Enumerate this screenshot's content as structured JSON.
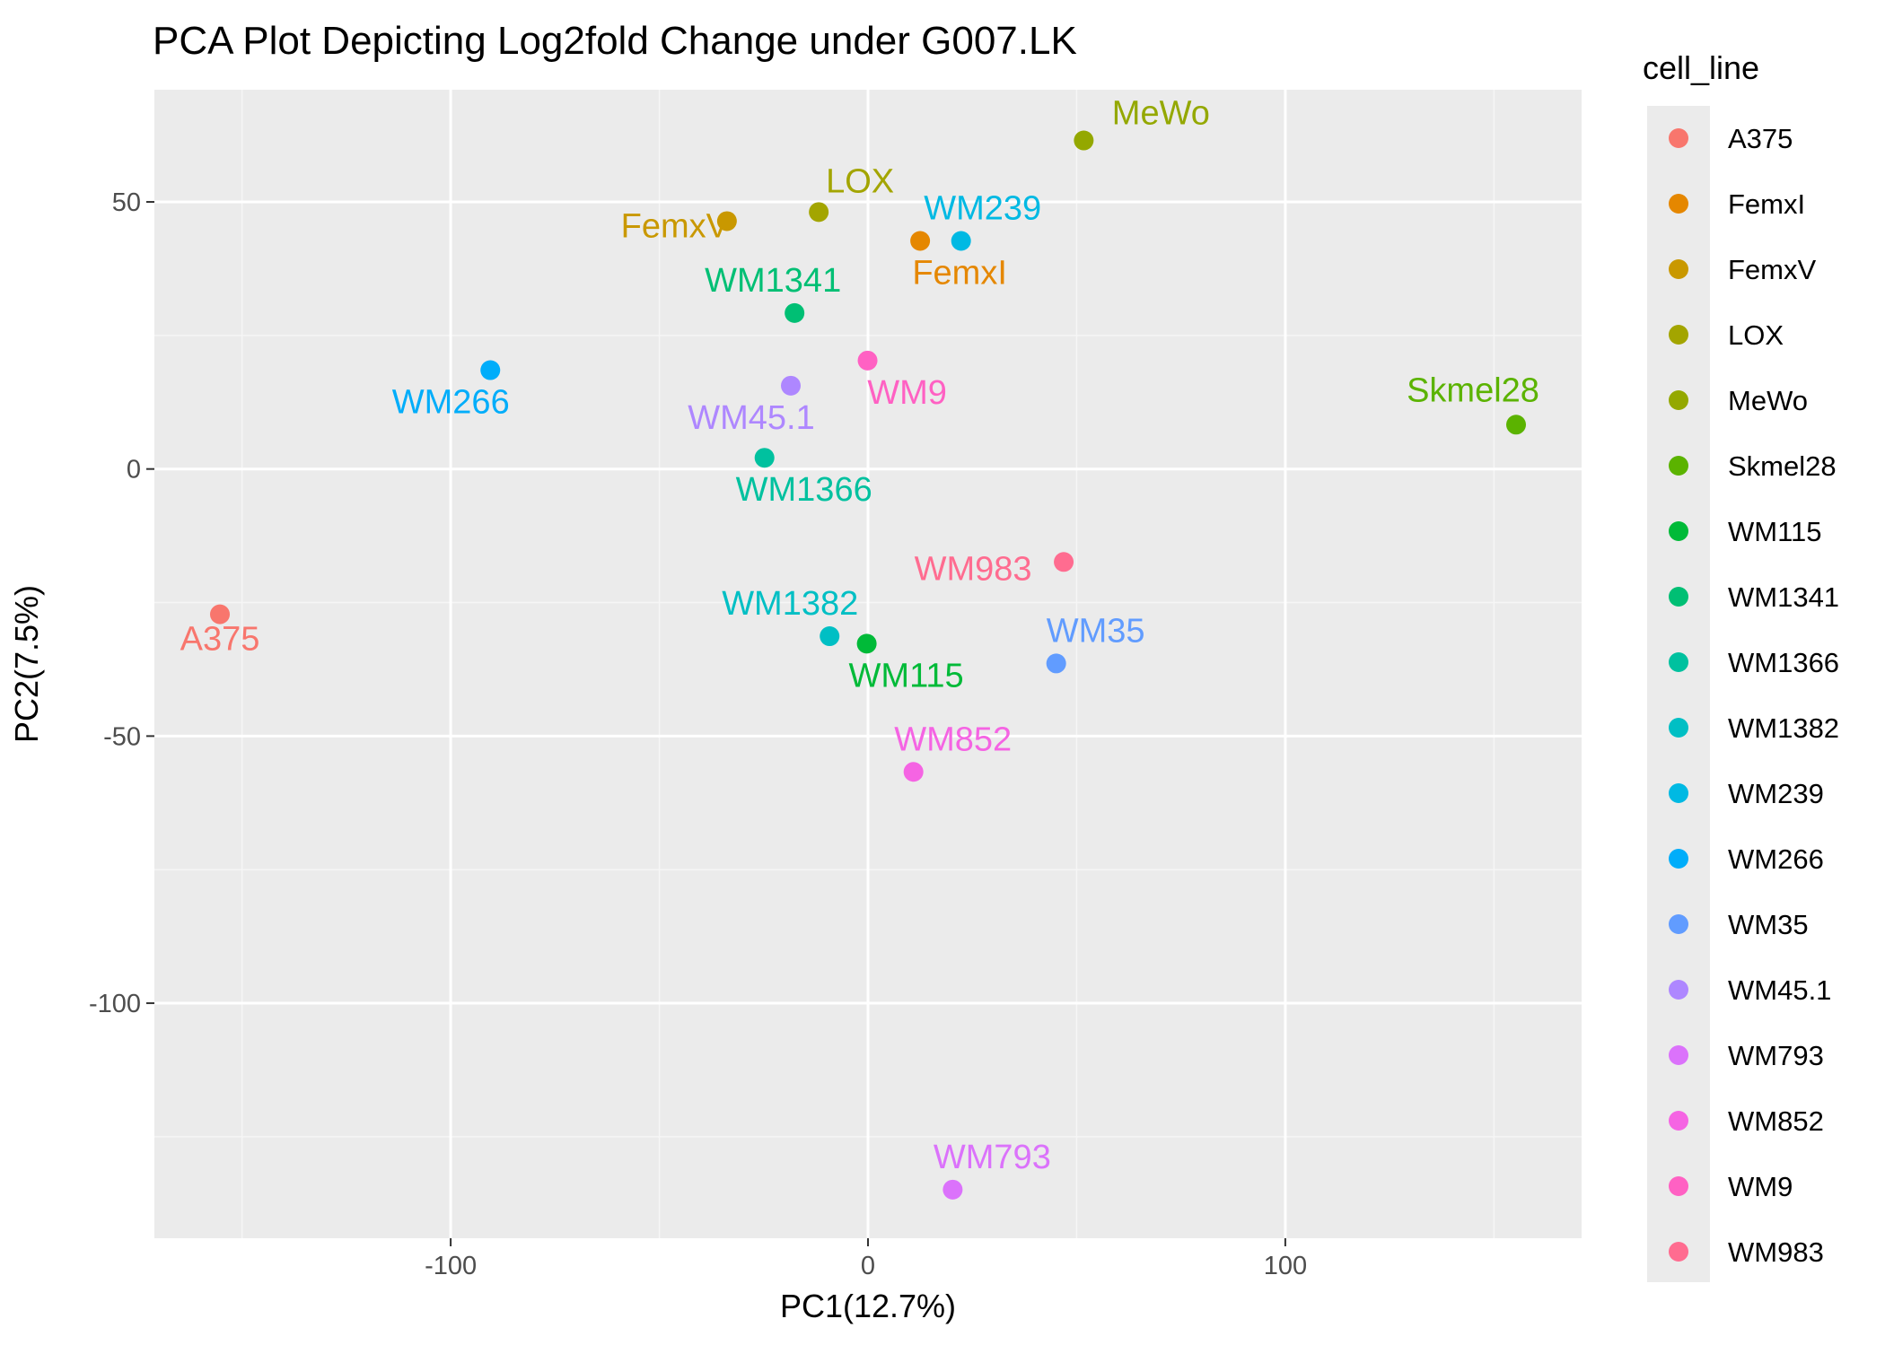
{
  "chart_data": {
    "type": "scatter",
    "title": "PCA Plot Depicting Log2fold Change under G007.LK",
    "xlabel": "PC1(12.7%)",
    "ylabel": "PC2(7.5%)",
    "xlim": [
      -171,
      171
    ],
    "ylim": [
      -144,
      71
    ],
    "xticks": [
      -100,
      0,
      100
    ],
    "xtick_labels": [
      "-100",
      "0",
      "100"
    ],
    "yticks": [
      -100,
      -50,
      0,
      50
    ],
    "ytick_labels": [
      "-100",
      "-50",
      "0",
      "50"
    ],
    "grid": true,
    "legend": {
      "title": "cell_line",
      "position": "right"
    },
    "series": [
      {
        "name": "A375",
        "color": "#F8766D",
        "x": -155.3,
        "y": -27.2,
        "label": "A375"
      },
      {
        "name": "FemxI",
        "color": "#E58700",
        "x": 12.5,
        "y": 42.7,
        "label": "FemxI"
      },
      {
        "name": "FemxV",
        "color": "#C99800",
        "x": -33.8,
        "y": 46.4,
        "label": "FemxV"
      },
      {
        "name": "LOX",
        "color": "#A3A500",
        "x": -11.8,
        "y": 48.1,
        "label": "LOX"
      },
      {
        "name": "MeWo",
        "color": "#94A800",
        "x": 51.7,
        "y": 61.5,
        "label": "MeWo"
      },
      {
        "name": "Skmel28",
        "color": "#5BB300",
        "x": 155.3,
        "y": 8.3,
        "label": "Skmel28"
      },
      {
        "name": "WM115",
        "color": "#00BA38",
        "x": -0.3,
        "y": -32.7,
        "label": "WM115"
      },
      {
        "name": "WM1341",
        "color": "#00BF74",
        "x": -17.6,
        "y": 29.2,
        "label": "WM1341"
      },
      {
        "name": "WM1366",
        "color": "#00C19F",
        "x": -24.8,
        "y": 2.1,
        "label": "WM1366"
      },
      {
        "name": "WM1382",
        "color": "#00BFC4",
        "x": -9.2,
        "y": -31.3,
        "label": "WM1382"
      },
      {
        "name": "WM239",
        "color": "#00B9E3",
        "x": 22.3,
        "y": 42.7,
        "label": "WM239"
      },
      {
        "name": "WM266",
        "color": "#00ADFA",
        "x": -90.5,
        "y": 18.5,
        "label": "WM266"
      },
      {
        "name": "WM35",
        "color": "#619CFF",
        "x": 45.1,
        "y": -36.4,
        "label": "WM35"
      },
      {
        "name": "WM45.1",
        "color": "#AE87FF",
        "x": -18.5,
        "y": 15.6,
        "label": "WM45.1"
      },
      {
        "name": "WM793",
        "color": "#DB72FB",
        "x": 20.3,
        "y": -134.9,
        "label": "WM793"
      },
      {
        "name": "WM852",
        "color": "#F564E3",
        "x": 10.9,
        "y": -56.7,
        "label": "WM852"
      },
      {
        "name": "WM9",
        "color": "#FF61C3",
        "x": -0.1,
        "y": 20.3,
        "label": "WM9"
      },
      {
        "name": "WM983",
        "color": "#FF6C90",
        "x": 46.9,
        "y": -17.4,
        "label": "WM983"
      }
    ]
  }
}
